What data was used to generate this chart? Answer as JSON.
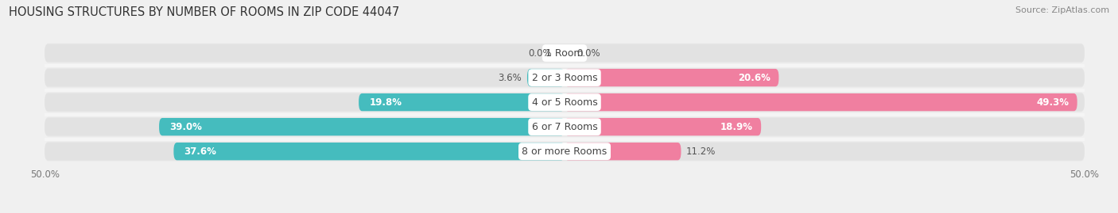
{
  "title": "HOUSING STRUCTURES BY NUMBER OF ROOMS IN ZIP CODE 44047",
  "source": "Source: ZipAtlas.com",
  "categories": [
    "1 Room",
    "2 or 3 Rooms",
    "4 or 5 Rooms",
    "6 or 7 Rooms",
    "8 or more Rooms"
  ],
  "owner_values": [
    0.0,
    3.6,
    19.8,
    39.0,
    37.6
  ],
  "renter_values": [
    0.0,
    20.6,
    49.3,
    18.9,
    11.2
  ],
  "owner_color": "#45BCBE",
  "renter_color": "#F07FA0",
  "axis_max": 50.0,
  "background_color": "#f0f0f0",
  "bar_bg_color": "#e2e2e2",
  "row_bg_color": "#e8e8e8",
  "separator_color": "#f5f5f5",
  "bar_height": 0.72,
  "title_fontsize": 10.5,
  "source_fontsize": 8,
  "legend_fontsize": 9,
  "tick_fontsize": 8.5,
  "category_fontsize": 9,
  "value_fontsize": 8.5
}
